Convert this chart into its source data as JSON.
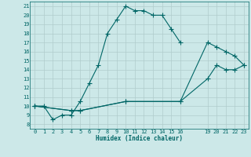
{
  "xlabel": "Humidex (Indice chaleur)",
  "bg_color": "#cce8e8",
  "line_color": "#006666",
  "grid_color": "#b0cccc",
  "ylim": [
    7.5,
    21.5
  ],
  "xlim": [
    -0.5,
    23.5
  ],
  "yticks": [
    8,
    9,
    10,
    11,
    12,
    13,
    14,
    15,
    16,
    17,
    18,
    19,
    20,
    21
  ],
  "xticks": [
    0,
    1,
    2,
    3,
    4,
    5,
    6,
    7,
    8,
    9,
    10,
    11,
    12,
    13,
    14,
    15,
    16,
    19,
    20,
    21,
    22,
    23
  ],
  "line1_x": [
    0,
    1,
    2,
    3,
    4,
    5,
    6,
    7,
    8,
    9,
    10,
    11,
    12,
    13,
    14,
    15,
    16
  ],
  "line1_y": [
    10,
    10,
    8.5,
    9.0,
    9.0,
    10.5,
    12.5,
    14.5,
    18.0,
    19.5,
    21.0,
    20.5,
    20.5,
    20.0,
    20.0,
    18.5,
    17.0
  ],
  "line2_x": [
    0,
    4,
    5,
    10,
    16,
    19,
    20,
    21,
    22,
    23
  ],
  "line2_y": [
    10,
    9.5,
    9.5,
    10.5,
    10.5,
    17.0,
    16.5,
    16.0,
    15.5,
    14.5
  ],
  "line3_x": [
    0,
    4,
    5,
    10,
    16,
    19,
    20,
    21,
    22,
    23
  ],
  "line3_y": [
    10,
    9.5,
    9.5,
    10.5,
    10.5,
    13.0,
    14.5,
    14.0,
    14.0,
    14.5
  ]
}
